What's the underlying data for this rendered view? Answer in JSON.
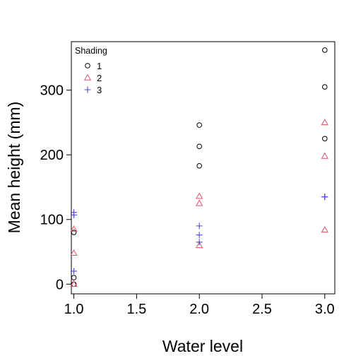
{
  "chart_data": {
    "type": "scatter",
    "title": "",
    "xlabel": "Water level",
    "ylabel": "Mean height (mm)",
    "xlim": [
      0.98,
      3.08
    ],
    "ylim": [
      -15,
      375
    ],
    "x_ticks": [
      1.0,
      1.5,
      2.0,
      2.5,
      3.0
    ],
    "x_tick_labels": [
      "1.0",
      "1.5",
      "2.0",
      "2.5",
      "3.0"
    ],
    "y_ticks": [
      0,
      100,
      200,
      300
    ],
    "y_tick_labels": [
      "0",
      "100",
      "200",
      "300"
    ],
    "grid": false,
    "legend": {
      "title": "Shading",
      "placement": "top-left",
      "entries": [
        "1",
        "2",
        "3"
      ]
    },
    "series": [
      {
        "name": "1",
        "marker": "circle",
        "color": "#000000",
        "x": [
          1,
          1,
          1,
          2,
          2,
          2,
          3,
          3,
          3
        ],
        "y": [
          80,
          10,
          0,
          246,
          213,
          183,
          362,
          305,
          225
        ]
      },
      {
        "name": "2",
        "marker": "triangle",
        "color": "#DF536B",
        "x": [
          1,
          1,
          1,
          2,
          2,
          2,
          3,
          3,
          3
        ],
        "y": [
          85,
          48,
          0,
          136,
          125,
          60,
          250,
          198,
          84
        ]
      },
      {
        "name": "3",
        "marker": "plus",
        "color": "#4A4AD8",
        "x": [
          1,
          1,
          1,
          2,
          2,
          2,
          3,
          3
        ],
        "y": [
          111,
          107,
          20,
          90,
          76,
          65,
          135,
          135
        ]
      }
    ]
  }
}
